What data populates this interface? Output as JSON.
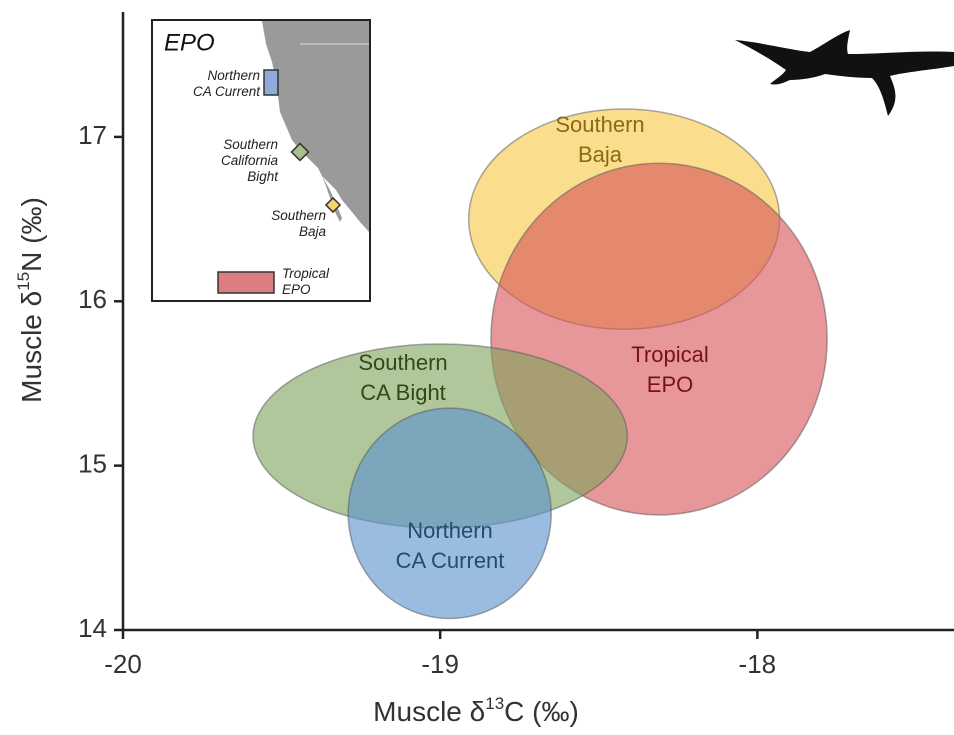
{
  "chart_data": {
    "type": "ellipse",
    "x_label": [
      "Muscle δ",
      "13",
      "C (‰)"
    ],
    "y_label": [
      "Muscle δ",
      "15",
      "N (‰)"
    ],
    "xlim": [
      -20,
      -17.38
    ],
    "ylim": [
      14,
      17.76
    ],
    "xticks": [
      -20,
      -19,
      -18
    ],
    "yticks": [
      14,
      15,
      16,
      17
    ],
    "series": [
      {
        "name": [
          "Southern",
          "Baja"
        ],
        "color": "#f7c948",
        "text_color": "#8a6a12",
        "cx": -18.42,
        "cy": 16.5,
        "rx": 0.49,
        "ry": 0.67
      },
      {
        "name": [
          "Tropical",
          "EPO"
        ],
        "color": "#d9555a",
        "text_color": "#7a1212",
        "cx": -18.31,
        "cy": 15.77,
        "rx": 0.53,
        "ry": 1.07
      },
      {
        "name": [
          "Southern",
          "CA Bight"
        ],
        "color": "#7fa35e",
        "text_color": "#2f4a1a",
        "cx": -19.0,
        "cy": 15.18,
        "rx": 0.59,
        "ry": 0.56
      },
      {
        "name": [
          "Northern",
          "CA Current"
        ],
        "color": "#5c93cf",
        "text_color": "#1f4f6b",
        "cx": -18.97,
        "cy": 14.71,
        "rx": 0.32,
        "ry": 0.64
      }
    ],
    "inset": {
      "title": "EPO",
      "regions": [
        {
          "label": [
            "Northern",
            "CA Current"
          ],
          "color": "#8fa9d9"
        },
        {
          "label": [
            "Southern",
            "California",
            "Bight"
          ],
          "color": "#a8c08d"
        },
        {
          "label": [
            "Southern",
            "Baja"
          ],
          "color": "#f5d36b"
        },
        {
          "label": [
            "Tropical",
            "EPO"
          ],
          "color": "#de7d7f"
        }
      ]
    }
  }
}
